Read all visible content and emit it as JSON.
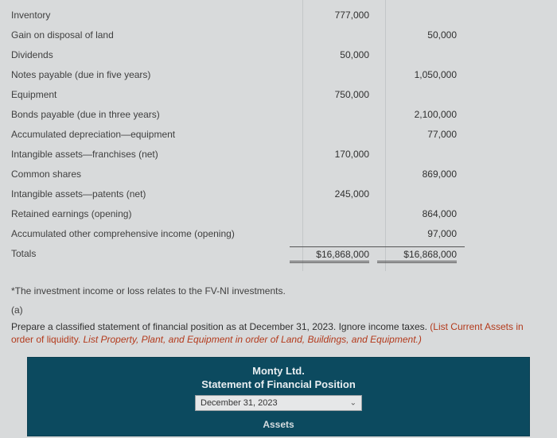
{
  "rows": [
    {
      "label": "Inventory",
      "debit": "777,000",
      "credit": ""
    },
    {
      "label": "Gain on disposal of land",
      "debit": "",
      "credit": "50,000"
    },
    {
      "label": "Dividends",
      "debit": "50,000",
      "credit": ""
    },
    {
      "label": "Notes payable (due in five years)",
      "debit": "",
      "credit": "1,050,000"
    },
    {
      "label": "Equipment",
      "debit": "750,000",
      "credit": ""
    },
    {
      "label": "Bonds payable (due in three years)",
      "debit": "",
      "credit": "2,100,000"
    },
    {
      "label": "Accumulated depreciation—equipment",
      "debit": "",
      "credit": "77,000"
    },
    {
      "label": "Intangible assets—franchises (net)",
      "debit": "170,000",
      "credit": ""
    },
    {
      "label": "Common shares",
      "debit": "",
      "credit": "869,000"
    },
    {
      "label": "Intangible assets—patents (net)",
      "debit": "245,000",
      "credit": ""
    },
    {
      "label": "Retained earnings (opening)",
      "debit": "",
      "credit": "864,000"
    },
    {
      "label": "Accumulated other comprehensive income (opening)",
      "debit": "",
      "credit": "97,000"
    }
  ],
  "totals": {
    "label": "Totals",
    "debit": "$16,868,000",
    "credit": "$16,868,000"
  },
  "footnote": "*The investment income or loss relates to the FV-NI investments.",
  "part": "(a)",
  "prompt_plain": "Prepare a classified statement of financial position as at December 31, 2023. Ignore income taxes. ",
  "prompt_inst1": "(List Current Assets in order of liquidity. ",
  "prompt_inst2": "List Property, Plant, and Equipment in order of Land, Buildings, and Equipment.)",
  "answer": {
    "company": "Monty Ltd.",
    "statement": "Statement of Financial Position",
    "date": "December 31, 2023",
    "section": "Assets"
  }
}
